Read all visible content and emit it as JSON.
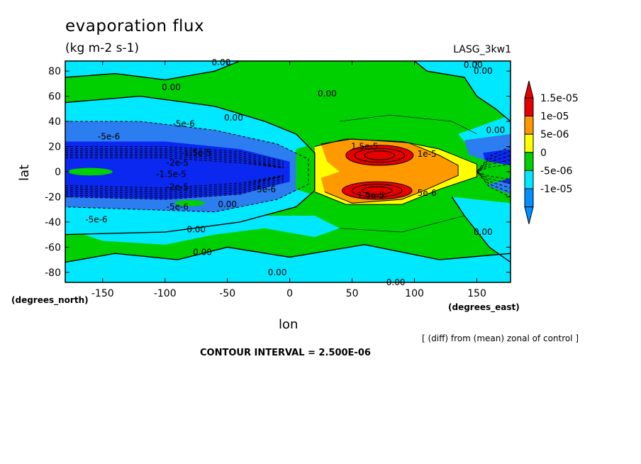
{
  "chart_data": {
    "type": "heatmap",
    "title": "evaporation flux",
    "subtitle": "(kg m-2 s-1)",
    "model_label": "LASG_3kw1",
    "xlabel": "lon",
    "ylabel": "lat",
    "x_units": "(degrees_east)",
    "y_units": "(degrees_north)",
    "note": "[ (diff) from (mean) zonal of control ]",
    "contour_interval_text": "CONTOUR INTERVAL = 2.500E-06",
    "xlim": [
      -180,
      177
    ],
    "ylim": [
      -88,
      88
    ],
    "x_ticks": [
      -150,
      -100,
      -50,
      0,
      50,
      100,
      150
    ],
    "y_ticks": [
      80,
      60,
      40,
      20,
      0,
      -20,
      -40,
      -60,
      -80
    ],
    "x_tick_labels": [
      "-150",
      "-100",
      "-50",
      "0",
      "50",
      "100",
      "150"
    ],
    "y_tick_labels": [
      "80",
      "60",
      "40",
      "20",
      "0",
      "-20",
      "-40",
      "-60",
      "-80"
    ],
    "colorbar": {
      "labels": [
        "1.5e-05",
        "1e-05",
        "5e-06",
        "0",
        "-5e-06",
        "-1e-05"
      ],
      "colors": [
        "#e60000",
        "#ff9900",
        "#ffff00",
        "#00d000",
        "#00e8ff",
        "#0090ff"
      ],
      "low_color": "#0090ff",
      "high_color": "#e60000"
    },
    "level_colors": {
      "lt_-1e-05": "#0a28f0",
      "-1e-05_-5e-06": "#2c7df0",
      "-5e-06_0": "#00e8ff",
      "0_5e-06": "#00d000",
      "5e-06_1e-05": "#ffff00",
      "1e-05_1.5e-05": "#ff9900",
      "gt_1.5e-05": "#e60000"
    },
    "contour_labels": [
      {
        "text": "0.00",
        "lon": -55,
        "lat": 87
      },
      {
        "text": "0.00",
        "lon": -95,
        "lat": 67
      },
      {
        "text": "0.00",
        "lon": 30,
        "lat": 62
      },
      {
        "text": "0.00",
        "lon": 147,
        "lat": 85
      },
      {
        "text": "0.00",
        "lon": 155,
        "lat": 80
      },
      {
        "text": "0.00",
        "lon": -45,
        "lat": 43
      },
      {
        "text": "0.00",
        "lon": 165,
        "lat": 33
      },
      {
        "text": "-5e-6",
        "lon": -145,
        "lat": 28
      },
      {
        "text": "-5e-6",
        "lon": -85,
        "lat": 38
      },
      {
        "text": "-1.5e-5",
        "lon": -75,
        "lat": 15
      },
      {
        "text": "-2e-5",
        "lon": -90,
        "lat": 7
      },
      {
        "text": "-1.5e-5",
        "lon": -95,
        "lat": -2
      },
      {
        "text": "-2e-5",
        "lon": -90,
        "lat": -12
      },
      {
        "text": "-5e-6",
        "lon": -90,
        "lat": -28
      },
      {
        "text": "-5e-6",
        "lon": -155,
        "lat": -38
      },
      {
        "text": "0.00",
        "lon": -50,
        "lat": -26
      },
      {
        "text": "0.00",
        "lon": -75,
        "lat": -46
      },
      {
        "text": "0.00",
        "lon": -70,
        "lat": -64
      },
      {
        "text": "0.00",
        "lon": -10,
        "lat": -80
      },
      {
        "text": "0.00",
        "lon": 85,
        "lat": -88
      },
      {
        "text": "0.00",
        "lon": 155,
        "lat": -48
      },
      {
        "text": "-5e-6",
        "lon": -20,
        "lat": -14
      },
      {
        "text": "1.5e-5",
        "lon": 60,
        "lat": 20
      },
      {
        "text": "1.5e-5",
        "lon": 65,
        "lat": -19
      },
      {
        "text": "1e-5",
        "lon": 110,
        "lat": 14
      },
      {
        "text": "5e-6",
        "lon": 110,
        "lat": -17
      }
    ]
  }
}
